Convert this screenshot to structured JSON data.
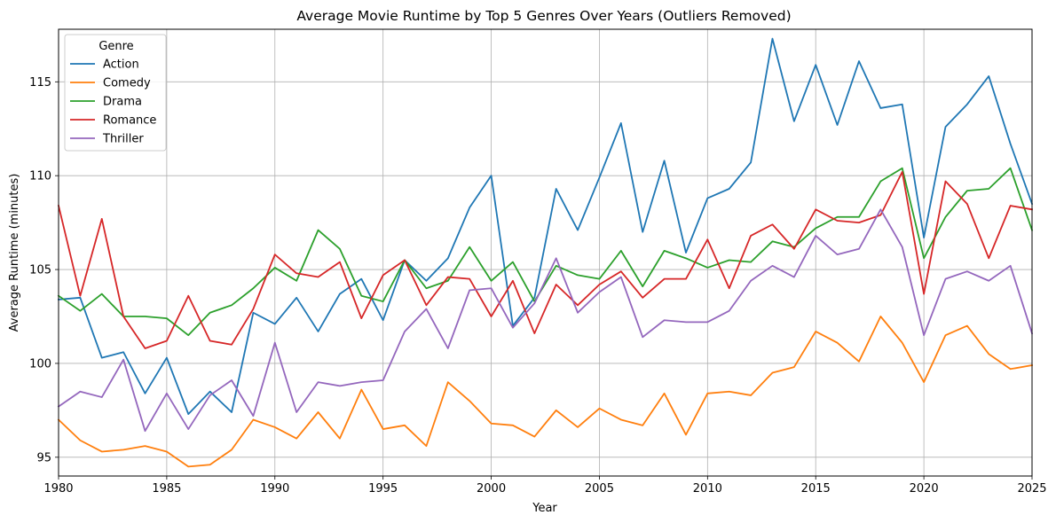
{
  "chart_data": {
    "type": "line",
    "title": "Average Movie Runtime by Top 5 Genres Over Years (Outliers Removed)",
    "xlabel": "Year",
    "ylabel": "Average Runtime (minutes)",
    "xlim": [
      1980,
      2025
    ],
    "ylim": [
      94.0,
      117.8
    ],
    "x_ticks": [
      1980,
      1985,
      1990,
      1995,
      2000,
      2005,
      2010,
      2015,
      2020,
      2025
    ],
    "y_ticks": [
      95,
      100,
      105,
      110,
      115
    ],
    "grid": true,
    "legend_title": "Genre",
    "legend_position": "top-left",
    "x": [
      1980,
      1981,
      1982,
      1983,
      1984,
      1985,
      1986,
      1987,
      1988,
      1989,
      1990,
      1991,
      1992,
      1993,
      1994,
      1995,
      1996,
      1997,
      1998,
      1999,
      2000,
      2001,
      2002,
      2003,
      2004,
      2005,
      2006,
      2007,
      2008,
      2009,
      2010,
      2011,
      2012,
      2013,
      2014,
      2015,
      2016,
      2017,
      2018,
      2019,
      2020,
      2021,
      2022,
      2023,
      2024,
      2025
    ],
    "series": [
      {
        "name": "Action",
        "color": "#1f77b4",
        "values": [
          103.4,
          103.5,
          100.3,
          100.6,
          98.4,
          100.3,
          97.3,
          98.5,
          97.4,
          102.7,
          102.1,
          103.5,
          101.7,
          103.7,
          104.5,
          102.3,
          105.5,
          104.4,
          105.6,
          108.3,
          110.0,
          102.0,
          103.5,
          109.3,
          107.1,
          109.9,
          112.8,
          107.0,
          110.8,
          105.9,
          108.8,
          109.3,
          110.7,
          117.3,
          112.9,
          115.9,
          112.7,
          116.1,
          113.6,
          113.8,
          106.7,
          112.6,
          113.8,
          115.3,
          111.7,
          108.5
        ]
      },
      {
        "name": "Comedy",
        "color": "#ff7f0e",
        "values": [
          97.0,
          95.9,
          95.3,
          95.4,
          95.6,
          95.3,
          94.5,
          94.6,
          95.4,
          97.0,
          96.6,
          96.0,
          97.4,
          96.0,
          98.6,
          96.5,
          96.7,
          95.6,
          99.0,
          98.0,
          96.8,
          96.7,
          96.1,
          97.5,
          96.6,
          97.6,
          97.0,
          96.7,
          98.4,
          96.2,
          98.4,
          98.5,
          98.3,
          99.5,
          99.8,
          101.7,
          101.1,
          100.1,
          102.5,
          101.1,
          99.0,
          101.5,
          102.0,
          100.5,
          99.7,
          99.9
        ]
      },
      {
        "name": "Drama",
        "color": "#2ca02c",
        "values": [
          103.6,
          102.8,
          103.7,
          102.5,
          102.5,
          102.4,
          101.5,
          102.7,
          103.1,
          104.0,
          105.1,
          104.4,
          107.1,
          106.1,
          103.6,
          103.3,
          105.5,
          104.0,
          104.4,
          106.2,
          104.4,
          105.4,
          103.3,
          105.2,
          104.7,
          104.5,
          106.0,
          104.1,
          106.0,
          105.6,
          105.1,
          105.5,
          105.4,
          106.5,
          106.2,
          107.2,
          107.8,
          107.8,
          109.7,
          110.4,
          105.6,
          107.8,
          109.2,
          109.3,
          110.4,
          107.1
        ]
      },
      {
        "name": "Romance",
        "color": "#d62728",
        "values": [
          108.4,
          103.6,
          107.7,
          102.5,
          100.8,
          101.2,
          103.6,
          101.2,
          101.0,
          102.9,
          105.8,
          104.8,
          104.6,
          105.4,
          102.4,
          104.7,
          105.5,
          103.1,
          104.6,
          104.5,
          102.5,
          104.4,
          101.6,
          104.2,
          103.1,
          104.2,
          104.9,
          103.5,
          104.5,
          104.5,
          106.6,
          104.0,
          106.8,
          107.4,
          106.1,
          108.2,
          107.6,
          107.5,
          107.9,
          110.2,
          103.7,
          109.7,
          108.5,
          105.6,
          108.4,
          108.2
        ]
      },
      {
        "name": "Thriller",
        "color": "#9467bd",
        "values": [
          97.7,
          98.5,
          98.2,
          100.2,
          96.4,
          98.4,
          96.5,
          98.3,
          99.1,
          97.2,
          101.1,
          97.4,
          99.0,
          98.8,
          99.0,
          99.1,
          101.7,
          102.9,
          100.8,
          103.9,
          104.0,
          101.9,
          103.2,
          105.6,
          102.7,
          103.8,
          104.6,
          101.4,
          102.3,
          102.2,
          102.2,
          102.8,
          104.4,
          105.2,
          104.6,
          106.8,
          105.8,
          106.1,
          108.2,
          106.2,
          101.5,
          104.5,
          104.9,
          104.4,
          105.2,
          101.6
        ]
      }
    ]
  }
}
